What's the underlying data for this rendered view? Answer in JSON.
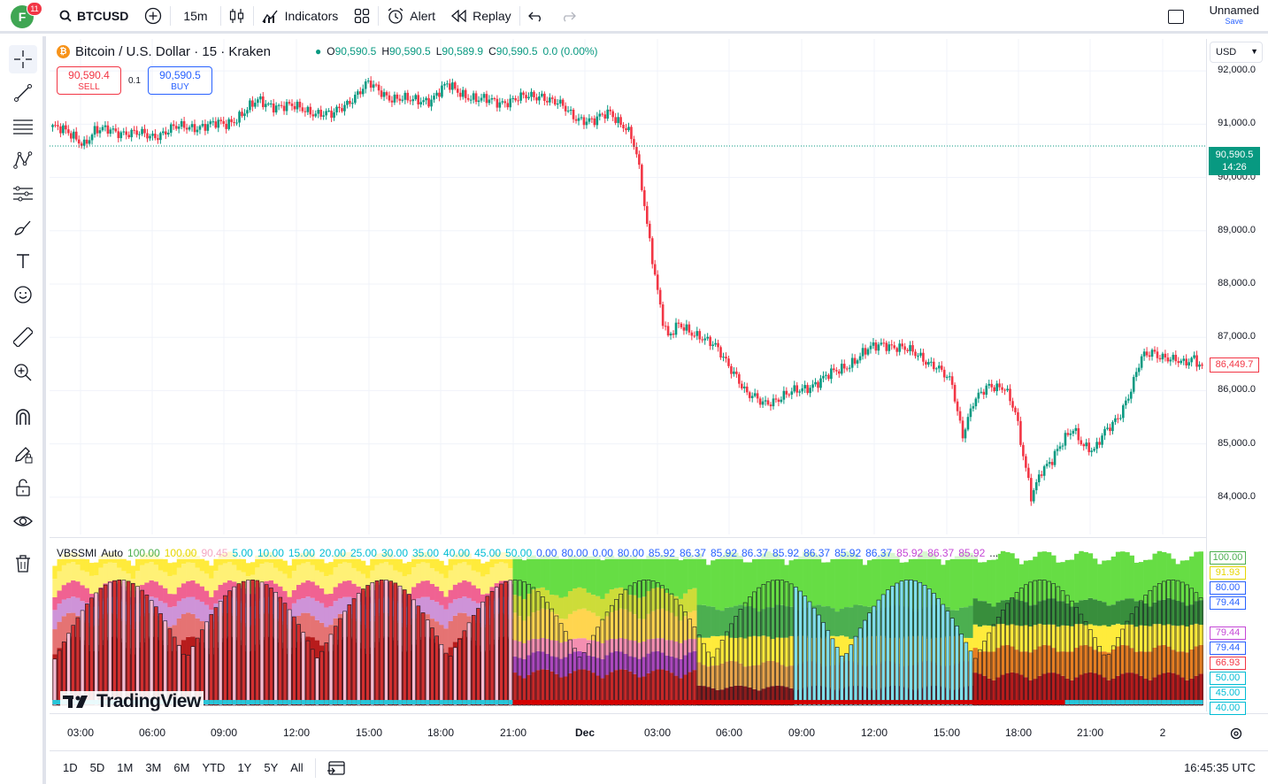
{
  "header": {
    "avatar_letter": "F",
    "avatar_badge": "11",
    "symbol": "BTCUSD",
    "interval": "15m",
    "indicators_label": "Indicators",
    "alert_label": "Alert",
    "replay_label": "Replay",
    "layout_name": "Unnamed",
    "save_label": "Save"
  },
  "legend": {
    "title": "Bitcoin / U.S. Dollar · 15 · Kraken",
    "coin_glyph": "₿",
    "ohlc": [
      {
        "k": "O",
        "v": "90,590.5"
      },
      {
        "k": "H",
        "v": "90,590.5"
      },
      {
        "k": "L",
        "v": "90,589.9"
      },
      {
        "k": "C",
        "v": "90,590.5"
      }
    ],
    "change": "0.0 (0.00%)"
  },
  "trade": {
    "sell_price": "90,590.4",
    "sell_label": "SELL",
    "spread": "0.1",
    "buy_price": "90,590.5",
    "buy_label": "BUY"
  },
  "price_axis": {
    "currency": "USD",
    "labels": [
      "92,000.0",
      "91,000.0",
      "90,000.0",
      "89,000.0",
      "88,000.0",
      "87,000.0",
      "86,000.0",
      "85,000.0",
      "84,000.0"
    ],
    "last_price": "90,590.5",
    "countdown": "14:26",
    "pre_price": "86,449.7"
  },
  "indicator": {
    "name": "VBSSMI",
    "mode": "Auto",
    "values": [
      {
        "v": "100.00",
        "c": "#4caf50"
      },
      {
        "v": "100.00",
        "c": "#e6d600"
      },
      {
        "v": "90.45",
        "c": "#f4a7c3"
      },
      {
        "v": "5.00",
        "c": "#00bcd4"
      },
      {
        "v": "10.00",
        "c": "#00bcd4"
      },
      {
        "v": "15.00",
        "c": "#00bcd4"
      },
      {
        "v": "20.00",
        "c": "#00bcd4"
      },
      {
        "v": "25.00",
        "c": "#00bcd4"
      },
      {
        "v": "30.00",
        "c": "#00bcd4"
      },
      {
        "v": "35.00",
        "c": "#00bcd4"
      },
      {
        "v": "40.00",
        "c": "#00bcd4"
      },
      {
        "v": "45.00",
        "c": "#00bcd4"
      },
      {
        "v": "50.00",
        "c": "#00bcd4"
      },
      {
        "v": "0.00",
        "c": "#2962ff"
      },
      {
        "v": "80.00",
        "c": "#2962ff"
      },
      {
        "v": "0.00",
        "c": "#2962ff"
      },
      {
        "v": "80.00",
        "c": "#2962ff"
      },
      {
        "v": "85.92",
        "c": "#2962ff"
      },
      {
        "v": "86.37",
        "c": "#2962ff"
      },
      {
        "v": "85.92",
        "c": "#2962ff"
      },
      {
        "v": "86.37",
        "c": "#2962ff"
      },
      {
        "v": "85.92",
        "c": "#2962ff"
      },
      {
        "v": "86.37",
        "c": "#2962ff"
      },
      {
        "v": "85.92",
        "c": "#2962ff"
      },
      {
        "v": "86.37",
        "c": "#2962ff"
      },
      {
        "v": "85.92",
        "c": "#c548d6"
      },
      {
        "v": "86.37",
        "c": "#c548d6"
      },
      {
        "v": "85.92",
        "c": "#c548d6"
      },
      {
        "v": "...",
        "c": "#131722"
      }
    ],
    "axis_tags": [
      {
        "v": "100.00",
        "c": "#4caf50",
        "y": 630
      },
      {
        "v": "91.93",
        "c": "#e6d600",
        "y": 647
      },
      {
        "v": "80.00",
        "c": "#2962ff",
        "y": 664
      },
      {
        "v": "79.44",
        "c": "#2962ff",
        "y": 681
      },
      {
        "v": "79.44",
        "c": "#c548d6",
        "y": 715
      },
      {
        "v": "79.44",
        "c": "#2962ff",
        "y": 732
      },
      {
        "v": "66.93",
        "c": "#f23645",
        "y": 749
      },
      {
        "v": "50.00",
        "c": "#00bcd4",
        "y": 766
      },
      {
        "v": "45.00",
        "c": "#00bcd4",
        "y": 783
      },
      {
        "v": "40.00",
        "c": "#00bcd4",
        "y": 800
      }
    ]
  },
  "watermark": "TradingView",
  "time_axis": [
    "03:00",
    "06:00",
    "09:00",
    "12:00",
    "15:00",
    "18:00",
    "21:00",
    "Dec",
    "03:00",
    "06:00",
    "09:00",
    "12:00",
    "15:00",
    "18:00",
    "21:00",
    "2"
  ],
  "bottom": {
    "ranges": [
      "1D",
      "5D",
      "1M",
      "3M",
      "6M",
      "YTD",
      "1Y",
      "5Y",
      "All"
    ],
    "clock": "16:45:35 UTC"
  },
  "chart_data": {
    "type": "candlestick",
    "title": "Bitcoin / U.S. Dollar · 15 · Kraken",
    "ylim": [
      83300,
      92600
    ],
    "last_price": 90590.5,
    "close_path": [
      [
        0,
        90950
      ],
      [
        8,
        90780
      ],
      [
        12,
        90650
      ],
      [
        16,
        90850
      ],
      [
        22,
        90900
      ],
      [
        30,
        90820
      ],
      [
        38,
        90780
      ],
      [
        46,
        90920
      ],
      [
        56,
        90970
      ],
      [
        66,
        91000
      ],
      [
        72,
        91200
      ],
      [
        78,
        91420
      ],
      [
        86,
        91350
      ],
      [
        96,
        91280
      ],
      [
        106,
        91150
      ],
      [
        114,
        91500
      ],
      [
        120,
        91750
      ],
      [
        128,
        91520
      ],
      [
        136,
        91430
      ],
      [
        144,
        91480
      ],
      [
        150,
        91720
      ],
      [
        156,
        91580
      ],
      [
        162,
        91450
      ],
      [
        170,
        91420
      ],
      [
        178,
        91480
      ],
      [
        186,
        91550
      ],
      [
        192,
        91380
      ],
      [
        198,
        91150
      ],
      [
        206,
        91050
      ],
      [
        212,
        91220
      ],
      [
        218,
        90950
      ],
      [
        220,
        90750
      ],
      [
        222,
        90400
      ],
      [
        224,
        89800
      ],
      [
        226,
        89100
      ],
      [
        228,
        88500
      ],
      [
        230,
        87900
      ],
      [
        232,
        87350
      ],
      [
        234,
        87000
      ],
      [
        238,
        87200
      ],
      [
        246,
        87050
      ],
      [
        252,
        86800
      ],
      [
        256,
        86550
      ],
      [
        260,
        86300
      ],
      [
        264,
        85920
      ],
      [
        270,
        85760
      ],
      [
        278,
        85900
      ],
      [
        284,
        86000
      ],
      [
        290,
        86150
      ],
      [
        298,
        86350
      ],
      [
        304,
        86550
      ],
      [
        310,
        86750
      ],
      [
        316,
        86900
      ],
      [
        322,
        86800
      ],
      [
        330,
        86650
      ],
      [
        336,
        86450
      ],
      [
        342,
        86100
      ],
      [
        344,
        85600
      ],
      [
        346,
        85200
      ],
      [
        350,
        85800
      ],
      [
        356,
        86050
      ],
      [
        362,
        86100
      ],
      [
        366,
        85600
      ],
      [
        368,
        85000
      ],
      [
        370,
        84500
      ],
      [
        372,
        84000
      ],
      [
        376,
        84550
      ],
      [
        380,
        84700
      ],
      [
        384,
        85000
      ],
      [
        388,
        85300
      ],
      [
        392,
        85000
      ],
      [
        396,
        84850
      ],
      [
        400,
        85200
      ],
      [
        406,
        85600
      ],
      [
        410,
        86000
      ],
      [
        414,
        86600
      ],
      [
        418,
        86750
      ],
      [
        422,
        86650
      ],
      [
        426,
        86550
      ],
      [
        430,
        86500
      ],
      [
        434,
        86650
      ],
      [
        437,
        86450
      ]
    ]
  }
}
